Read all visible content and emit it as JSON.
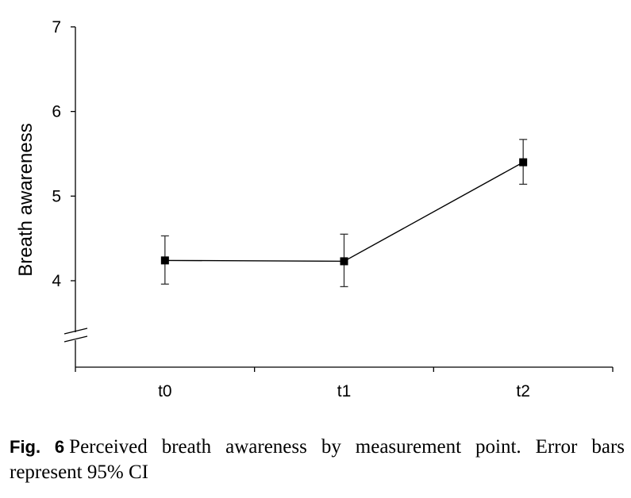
{
  "chart_data": {
    "type": "line",
    "categories": [
      "t0",
      "t1",
      "t2"
    ],
    "series": [
      {
        "values": [
          4.24,
          4.23,
          5.4
        ],
        "ci_lower": [
          3.96,
          3.93,
          5.14
        ],
        "ci_upper": [
          4.53,
          4.55,
          5.67
        ]
      }
    ],
    "ylabel": "Breath awareness",
    "xlabel": "",
    "ylim": [
      3.0,
      7.0
    ],
    "yticks": [
      "4",
      "5",
      "6",
      "7"
    ],
    "axis_break": true,
    "grid": false,
    "legend": "none"
  },
  "caption": {
    "label": "Fig. 6",
    "text": "Perceived breath awareness by measurement point. Error bars represent 95% CI"
  }
}
